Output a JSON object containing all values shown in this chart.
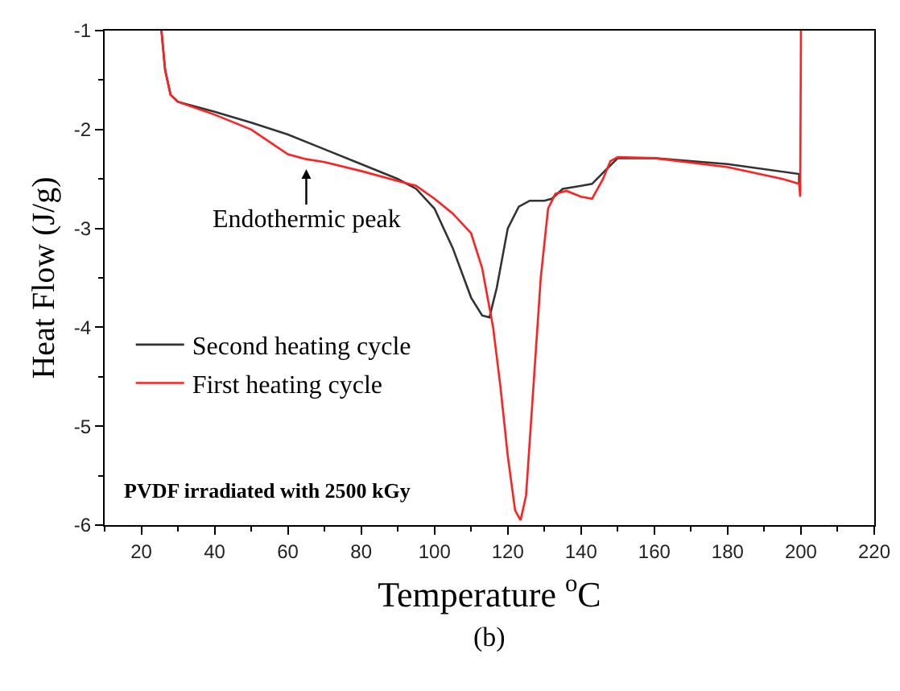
{
  "chart_data": {
    "type": "line",
    "xlabel": "Temperature $^{o}$C",
    "ylabel": "Heat Flow (J/g)",
    "xlim": [
      10,
      220
    ],
    "xticks": [
      20,
      40,
      60,
      80,
      100,
      120,
      140,
      160,
      180,
      200,
      220
    ],
    "ylim": [
      -6,
      -1
    ],
    "yticks": [
      -6,
      -5,
      -4,
      -3,
      -2,
      -1
    ],
    "grid": false,
    "legend": "left",
    "marker": "none",
    "line_style": "solid",
    "annotations": [
      "Endothermic peak",
      "PVDF irradiated with 2500 kGy",
      "(b)"
    ],
    "series": [
      {
        "name": "Second heating cycle",
        "color": "#333333",
        "x": [
          25.5,
          26.5,
          28,
          30,
          40,
          50,
          60,
          70,
          80,
          90,
          95,
          100,
          105,
          110,
          113,
          115,
          117,
          120,
          123,
          126,
          130,
          132,
          135,
          140,
          143,
          147,
          150,
          160,
          180,
          199.5,
          199.5
        ],
        "values": [
          -1,
          -1.4,
          -1.65,
          -1.72,
          -1.82,
          -1.93,
          -2.05,
          -2.2,
          -2.35,
          -2.5,
          -2.6,
          -2.8,
          -3.2,
          -3.7,
          -3.88,
          -3.9,
          -3.6,
          -3.0,
          -2.78,
          -2.72,
          -2.72,
          -2.7,
          -2.6,
          -2.57,
          -2.55,
          -2.4,
          -2.29,
          -2.29,
          -2.35,
          -2.45,
          -2.55
        ]
      },
      {
        "name": "First heating cycle",
        "color": "#ff2020",
        "x": [
          25.5,
          26.5,
          28,
          30,
          40,
          50,
          60,
          65,
          70,
          80,
          90,
          95,
          100,
          105,
          110,
          113,
          116,
          118,
          120,
          122,
          123.5,
          125,
          127,
          129,
          131,
          133,
          136,
          140,
          143,
          146,
          148,
          150,
          160,
          180,
          195,
          199.5,
          199.8,
          200
        ],
        "values": [
          -1,
          -1.4,
          -1.65,
          -1.72,
          -1.85,
          -2.0,
          -2.25,
          -2.3,
          -2.33,
          -2.42,
          -2.52,
          -2.57,
          -2.7,
          -2.85,
          -3.05,
          -3.4,
          -4.0,
          -4.6,
          -5.3,
          -5.85,
          -5.95,
          -5.7,
          -4.6,
          -3.5,
          -2.8,
          -2.65,
          -2.62,
          -2.68,
          -2.7,
          -2.5,
          -2.32,
          -2.28,
          -2.29,
          -2.38,
          -2.5,
          -2.55,
          -2.68,
          -1
        ]
      }
    ]
  }
}
